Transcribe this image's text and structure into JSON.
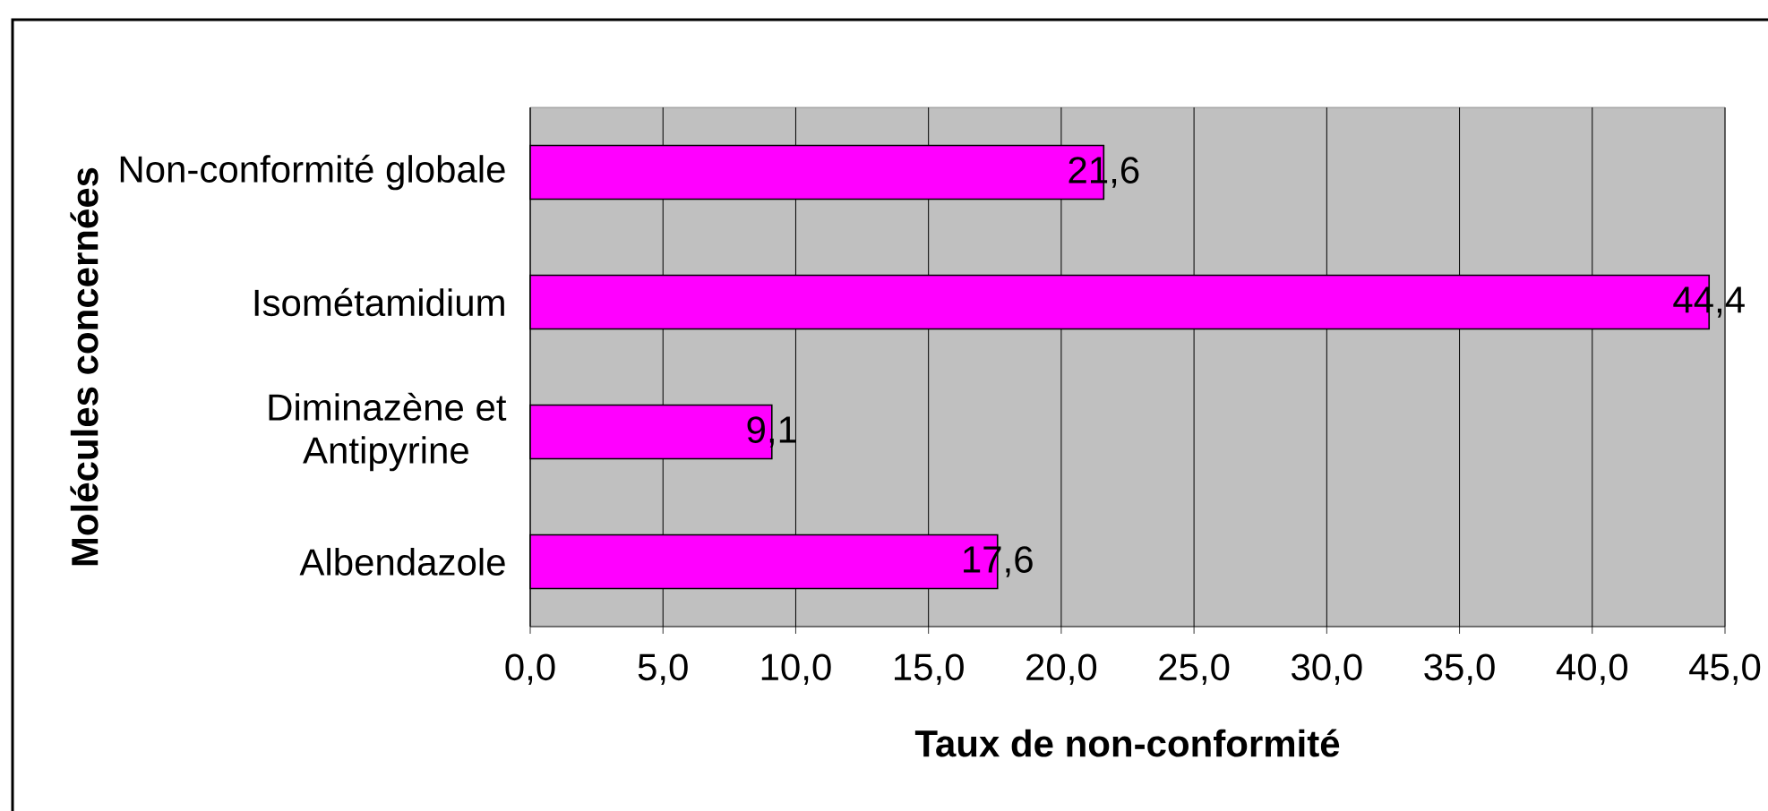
{
  "chart_data": {
    "type": "bar",
    "orientation": "horizontal",
    "categories": [
      "Non-conformité globale",
      "Isométamidium",
      "Diminazène et Antipyrine",
      "Albendazole"
    ],
    "values": [
      21.6,
      44.4,
      9.1,
      17.6
    ],
    "value_labels": [
      "21,6",
      "44,4",
      "9,1",
      "17,6"
    ],
    "color": "#ff00ff",
    "xlim": [
      0,
      45
    ],
    "xticks": [
      {
        "value": 0,
        "label": "0,0"
      },
      {
        "value": 5,
        "label": "5,0"
      },
      {
        "value": 10,
        "label": "10,0"
      },
      {
        "value": 15,
        "label": "15,0"
      },
      {
        "value": 20,
        "label": "20,0"
      },
      {
        "value": 25,
        "label": "25,0"
      },
      {
        "value": 30,
        "label": "30,0"
      },
      {
        "value": 35,
        "label": "35,0"
      },
      {
        "value": 40,
        "label": "40,0"
      },
      {
        "value": 45,
        "label": "45,0"
      }
    ],
    "xlabel": "Taux de non-conformité",
    "ylabel": "Molécules concernées",
    "grid": "x"
  }
}
